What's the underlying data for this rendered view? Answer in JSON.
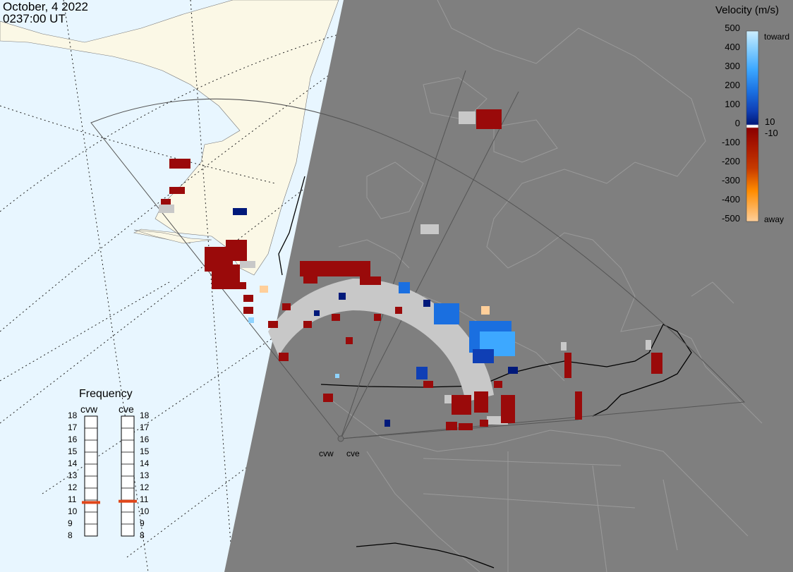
{
  "header": {
    "date": "October, 4 2022",
    "time": "0237:00 UT"
  },
  "velocity_legend": {
    "title": "Velocity (m/s)",
    "ticks": [
      "500",
      "400",
      "300",
      "200",
      "100",
      "10",
      "0",
      "-10",
      "-100",
      "-200",
      "-300",
      "-400",
      "-500"
    ],
    "toward_label": "toward",
    "away_label": "away",
    "colors": [
      "#cdeeff",
      "#8fd3ff",
      "#3da8ff",
      "#1a6fe0",
      "#0f3fb5",
      "#00197a",
      "#ffffff",
      "#8b0000",
      "#a81600",
      "#c63a00",
      "#e35a00",
      "#ff8c00",
      "#ffcf9a"
    ]
  },
  "frequency_panel": {
    "title": "Frequency",
    "radars": [
      "cvw",
      "cve"
    ],
    "scale": [
      "18",
      "17",
      "16",
      "15",
      "14",
      "13",
      "12",
      "11",
      "10",
      "9",
      "8"
    ],
    "current_mhz": {
      "cvw": 10.8,
      "cve": 10.9
    },
    "marker_color": "#e0461a"
  },
  "map": {
    "site_labels": [
      "cvw",
      "cve"
    ],
    "ocean_color": "#e8f6ff",
    "land_color": "#fbf8e6",
    "night_color": "#7f7f7f",
    "fov_outline_color": "#555555",
    "ground_scatter_color": "#c8c8c8",
    "lowvel_red": "#9a0a0a"
  }
}
